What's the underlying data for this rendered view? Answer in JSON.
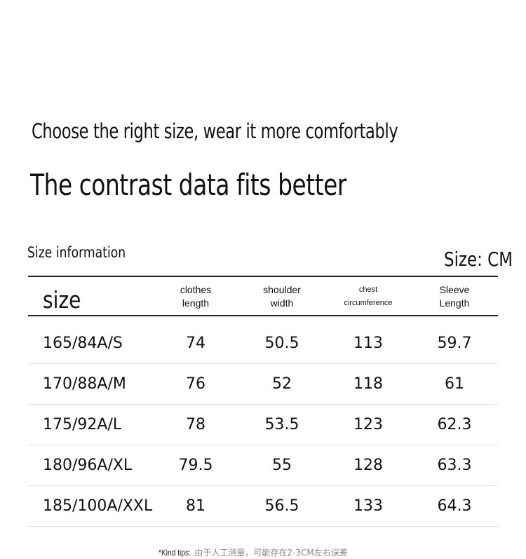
{
  "headline": {
    "line1": "Choose the right size, wear it more comfortably",
    "line2": "The contrast data fits better"
  },
  "section": {
    "title": "Size information",
    "unit": "Size: CM"
  },
  "table": {
    "size_header": "size",
    "columns": [
      {
        "line1": "clothes",
        "line2": "length"
      },
      {
        "line1": "shoulder",
        "line2": "width"
      },
      {
        "line1": "chest",
        "line2": "circumference"
      },
      {
        "line1": "Sleeve",
        "line2": "Length"
      }
    ],
    "rows": [
      {
        "size": "165/84A/S",
        "values": [
          "74",
          "50.5",
          "113",
          "59.7"
        ]
      },
      {
        "size": "170/88A/M",
        "values": [
          "76",
          "52",
          "118",
          "61"
        ]
      },
      {
        "size": "175/92A/L",
        "values": [
          "78",
          "53.5",
          "123",
          "62.3"
        ]
      },
      {
        "size": "180/96A/XL",
        "values": [
          "79.5",
          "55",
          "128",
          "63.3"
        ]
      },
      {
        "size": "185/100A/XXL",
        "values": [
          "81",
          "56.5",
          "133",
          "64.3"
        ]
      }
    ]
  },
  "tips": {
    "label": "*Kind tips:",
    "text": "由于人工测量，可能存在2-3CM左右误差"
  }
}
